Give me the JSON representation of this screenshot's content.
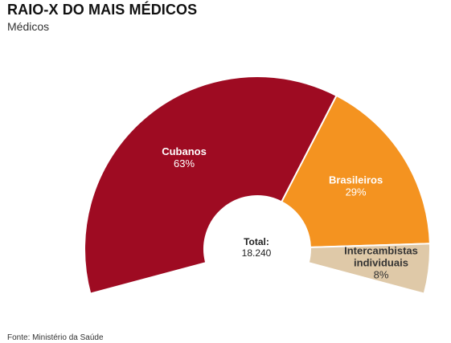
{
  "header": {
    "title": "RAIO-X DO MAIS MÉDICOS",
    "subtitle": "Médicos"
  },
  "footer": {
    "source": "Fonte: Ministério da Saúde"
  },
  "chart_data": {
    "type": "pie",
    "variant": "semi-donut",
    "center_label": "Total:",
    "center_value": "18.240",
    "slices": [
      {
        "name": "Cubanos",
        "label_lines": [
          "Cubanos"
        ],
        "value": 63,
        "display": "63%",
        "color": "#9e0b22",
        "text_color": "#ffffff"
      },
      {
        "name": "Brasileiros",
        "label_lines": [
          "Brasileiros"
        ],
        "value": 29,
        "display": "29%",
        "color": "#f49320",
        "text_color": "#ffffff"
      },
      {
        "name": "Intercambistas individuais",
        "label_lines": [
          "Intercambistas",
          "individuais"
        ],
        "value": 8,
        "display": "8%",
        "color": "#dfc9a8",
        "text_color": "#333333"
      }
    ]
  }
}
